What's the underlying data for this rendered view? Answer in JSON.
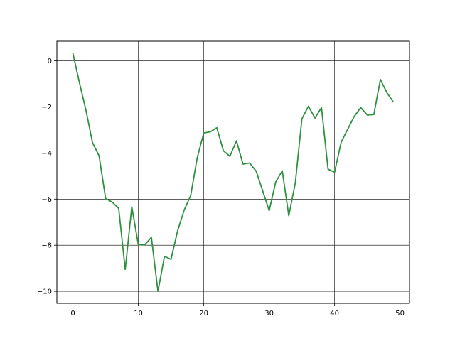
{
  "chart_data": {
    "type": "line",
    "title": "",
    "xlabel": "",
    "ylabel": "",
    "xlim": [
      -2.45,
      51.45
    ],
    "ylim": [
      -10.52,
      0.85
    ],
    "x_ticks": [
      0,
      10,
      20,
      30,
      40,
      50
    ],
    "y_ticks": [
      0,
      -2,
      -4,
      -6,
      -8,
      -10
    ],
    "x_tick_labels": [
      "0",
      "10",
      "20",
      "30",
      "40",
      "50"
    ],
    "y_tick_labels": [
      "0",
      "−2",
      "−4",
      "−6",
      "−8",
      "−10"
    ],
    "grid": true,
    "legend": "none",
    "series": [
      {
        "color": "#2e9140",
        "x": [
          0,
          1,
          2,
          3,
          4,
          5,
          6,
          7,
          8,
          9,
          10,
          11,
          12,
          13,
          14,
          15,
          16,
          17,
          18,
          19,
          20,
          21,
          22,
          23,
          24,
          25,
          26,
          27,
          28,
          29,
          30,
          31,
          32,
          33,
          34,
          35,
          36,
          37,
          38,
          39,
          40,
          41,
          42,
          43,
          44,
          45,
          46,
          47,
          48,
          49
        ],
        "values": [
          0.33,
          -0.95,
          -2.15,
          -3.55,
          -4.12,
          -5.97,
          -6.13,
          -6.4,
          -9.05,
          -6.33,
          -7.98,
          -7.97,
          -7.66,
          -10.0,
          -8.48,
          -8.61,
          -7.38,
          -6.48,
          -5.85,
          -4.21,
          -3.13,
          -3.08,
          -2.9,
          -3.9,
          -4.14,
          -3.47,
          -4.48,
          -4.43,
          -4.78,
          -5.63,
          -6.5,
          -5.26,
          -4.77,
          -6.72,
          -5.29,
          -2.52,
          -1.97,
          -2.48,
          -2.03,
          -4.7,
          -4.83,
          -3.53,
          -2.97,
          -2.41,
          -2.03,
          -2.35,
          -2.33,
          -0.81,
          -1.38,
          -1.8
        ]
      }
    ]
  }
}
